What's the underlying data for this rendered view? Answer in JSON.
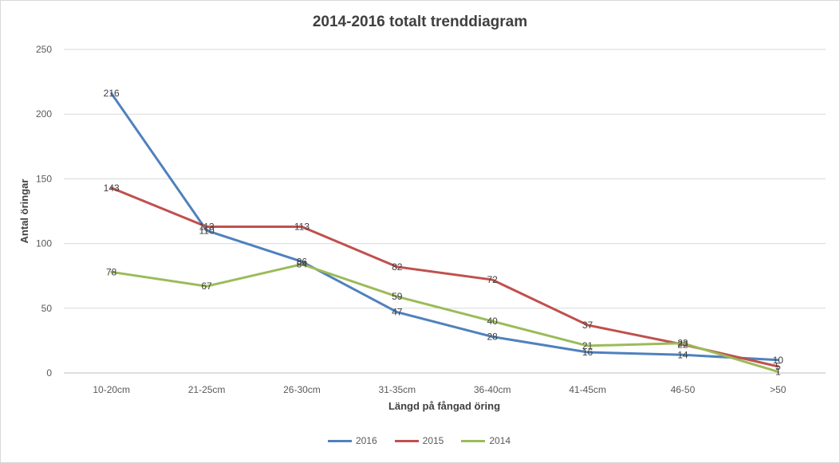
{
  "chart_data": {
    "type": "line",
    "title": "2014-2016 totalt trenddiagram",
    "xlabel": "Längd på fångad öring",
    "ylabel": "Antal öringar",
    "categories": [
      "10-20cm",
      "21-25cm",
      "26-30cm",
      "31-35cm",
      "36-40cm",
      "41-45cm",
      "46-50",
      ">50"
    ],
    "ylim": [
      0,
      250
    ],
    "yticks": [
      "0",
      "50",
      "100",
      "150",
      "200",
      "250"
    ],
    "grid": true,
    "legend_position": "bottom",
    "series": [
      {
        "name": "2016",
        "color": "#4f81bd",
        "values": [
          216,
          110,
          86,
          47,
          28,
          16,
          14,
          10
        ]
      },
      {
        "name": "2015",
        "color": "#c0504d",
        "values": [
          143,
          113,
          113,
          82,
          72,
          37,
          22,
          5
        ]
      },
      {
        "name": "2014",
        "color": "#9bbb59",
        "values": [
          78,
          67,
          84,
          59,
          40,
          21,
          23,
          1
        ]
      }
    ]
  }
}
